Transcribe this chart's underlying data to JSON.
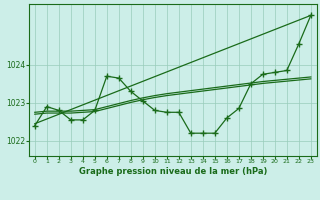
{
  "title": "Graphe pression niveau de la mer (hPa)",
  "bg_color": "#cceee8",
  "line_color": "#1a6b1a",
  "grid_color": "#99ccbb",
  "xlim": [
    -0.5,
    23.5
  ],
  "ylim": [
    1021.6,
    1025.6
  ],
  "yticks": [
    1022,
    1023,
    1024
  ],
  "xticks": [
    0,
    1,
    2,
    3,
    4,
    5,
    6,
    7,
    8,
    9,
    10,
    11,
    12,
    13,
    14,
    15,
    16,
    17,
    18,
    19,
    20,
    21,
    22,
    23
  ],
  "series_main": {
    "x": [
      0,
      1,
      2,
      3,
      4,
      5,
      6,
      7,
      8,
      9,
      10,
      11,
      12,
      13,
      14,
      15,
      16,
      17,
      18,
      19,
      20,
      21,
      22,
      23
    ],
    "y": [
      1022.4,
      1022.9,
      1022.8,
      1022.55,
      1022.55,
      1022.8,
      1023.7,
      1023.65,
      1023.3,
      1023.05,
      1022.8,
      1022.75,
      1022.75,
      1022.2,
      1022.2,
      1022.2,
      1022.6,
      1022.85,
      1023.5,
      1023.75,
      1023.8,
      1023.85,
      1024.55,
      1025.3
    ]
  },
  "series_smooth1": {
    "x": [
      0,
      1,
      2,
      3,
      4,
      5,
      6,
      7,
      8,
      9,
      10,
      11,
      12,
      13,
      14,
      15,
      16,
      17,
      18,
      19,
      20,
      21,
      22,
      23
    ],
    "y": [
      1022.75,
      1022.78,
      1022.78,
      1022.78,
      1022.8,
      1022.82,
      1022.9,
      1022.98,
      1023.06,
      1023.13,
      1023.19,
      1023.24,
      1023.28,
      1023.32,
      1023.36,
      1023.4,
      1023.44,
      1023.48,
      1023.52,
      1023.56,
      1023.59,
      1023.62,
      1023.65,
      1023.68
    ]
  },
  "series_smooth2": {
    "x": [
      0,
      1,
      2,
      3,
      4,
      5,
      6,
      7,
      8,
      9,
      10,
      11,
      12,
      13,
      14,
      15,
      16,
      17,
      18,
      19,
      20,
      21,
      22,
      23
    ],
    "y": [
      1022.7,
      1022.73,
      1022.73,
      1022.73,
      1022.75,
      1022.77,
      1022.85,
      1022.93,
      1023.01,
      1023.08,
      1023.14,
      1023.19,
      1023.23,
      1023.27,
      1023.31,
      1023.35,
      1023.39,
      1023.43,
      1023.47,
      1023.51,
      1023.54,
      1023.57,
      1023.6,
      1023.63
    ]
  },
  "series_trend": {
    "x": [
      0,
      23
    ],
    "y": [
      1022.45,
      1025.3
    ]
  }
}
